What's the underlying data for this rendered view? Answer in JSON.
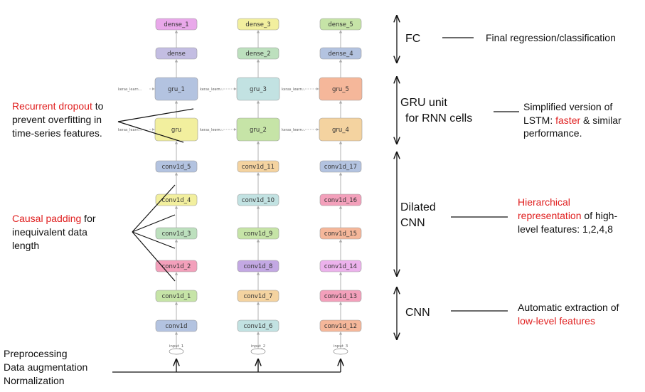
{
  "network": {
    "columns": [
      {
        "input": "input_1",
        "nodes": [
          {
            "label": "dense_1",
            "color": "#e9a8ea"
          },
          {
            "label": "dense",
            "color": "#c3bde2"
          },
          {
            "label": "gru_1",
            "color": "#b3c3e0"
          },
          {
            "label": "gru",
            "color": "#f2ef9e"
          },
          {
            "label": "conv1d_5",
            "color": "#b3c3e0"
          },
          {
            "label": "conv1d_4",
            "color": "#f2ef9e"
          },
          {
            "label": "conv1d_3",
            "color": "#bde0be"
          },
          {
            "label": "conv1d_2",
            "color": "#f3a0bb"
          },
          {
            "label": "conv1d_1",
            "color": "#c6e4a7"
          },
          {
            "label": "conv1d",
            "color": "#b3c3e0"
          }
        ]
      },
      {
        "input": "input_2",
        "nodes": [
          {
            "label": "dense_3",
            "color": "#f2ef9e"
          },
          {
            "label": "dense_2",
            "color": "#bde0be"
          },
          {
            "label": "gru_3",
            "color": "#c2e2e2"
          },
          {
            "label": "gru_2",
            "color": "#c6e4a7"
          },
          {
            "label": "conv1d_11",
            "color": "#f4d3a0"
          },
          {
            "label": "conv1d_10",
            "color": "#c2e2e2"
          },
          {
            "label": "conv1d_9",
            "color": "#c6e4a7"
          },
          {
            "label": "conv1d_8",
            "color": "#c3a8e3"
          },
          {
            "label": "conv1d_7",
            "color": "#f4d3a0"
          },
          {
            "label": "conv1d_6",
            "color": "#c2e2e2"
          }
        ]
      },
      {
        "input": "input_3",
        "nodes": [
          {
            "label": "dense_5",
            "color": "#c6e4a7"
          },
          {
            "label": "dense_4",
            "color": "#b3c3e0"
          },
          {
            "label": "gru_5",
            "color": "#f5b79a"
          },
          {
            "label": "gru_4",
            "color": "#f4d3a0"
          },
          {
            "label": "conv1d_17",
            "color": "#b3c3e0"
          },
          {
            "label": "conv1d_16",
            "color": "#f3a0bb"
          },
          {
            "label": "conv1d_15",
            "color": "#f5b79a"
          },
          {
            "label": "conv1d_14",
            "color": "#ecb2ec"
          },
          {
            "label": "conv1d_13",
            "color": "#f3a0bb"
          },
          {
            "label": "conv1d_12",
            "color": "#f5b79a"
          }
        ]
      }
    ],
    "connector_label": "keras_learn...",
    "edge_color": "#aaaaaa"
  },
  "sections": {
    "fc": "FC",
    "gru_line1": "GRU unit",
    "gru_line2": "for RNN cells",
    "dilated_line1": "Dilated",
    "dilated_line2": "CNN",
    "cnn": "CNN"
  },
  "annotations": {
    "fc_desc": "Final regression/classification",
    "gru_desc_line1": "Simplified version of",
    "gru_desc_line2_pre": "LSTM: ",
    "gru_desc_line2_red": "faster",
    "gru_desc_line2_post": " & similar",
    "gru_desc_line3": "performance.",
    "dilated_desc_line1_red": "Hierarchical",
    "dilated_desc_line2_red": "representation",
    "dilated_desc_line2_post": " of high-",
    "dilated_desc_line3": "level features: 1,2,4,8",
    "cnn_desc_line1": "Automatic extraction of",
    "cnn_desc_line2_red": "low-level features",
    "dropout_line1_red": "Recurrent dropout",
    "dropout_line1_post": " to",
    "dropout_line2": "prevent overfitting in",
    "dropout_line3": "time-series features.",
    "padding_line1_red": "Causal padding",
    "padding_line1_post": " for",
    "padding_line2": "inequivalent data",
    "padding_line3": "length",
    "prep_line1": "Preprocessing",
    "prep_line2": "Data augmentation",
    "prep_line3": "Normalization"
  },
  "colors": {
    "accent_red": "#e02020",
    "text": "#111111"
  }
}
